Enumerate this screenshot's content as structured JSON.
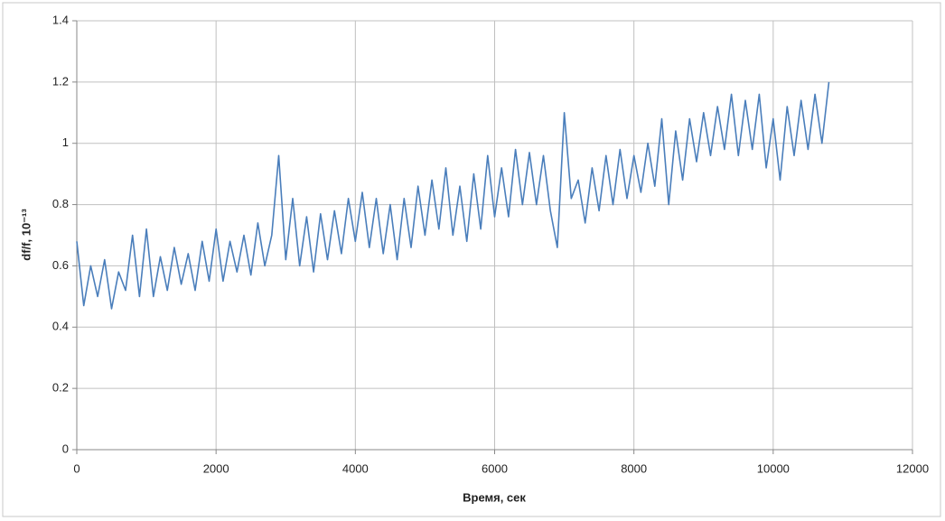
{
  "chart_data": {
    "type": "line",
    "x_label": "Время, сек",
    "y_label": "df/f, 10⁻¹³",
    "x": [
      0,
      100,
      200,
      300,
      400,
      500,
      600,
      700,
      800,
      900,
      1000,
      1100,
      1200,
      1300,
      1400,
      1500,
      1600,
      1700,
      1800,
      1900,
      2000,
      2100,
      2200,
      2300,
      2400,
      2500,
      2600,
      2700,
      2800,
      2900,
      3000,
      3100,
      3200,
      3300,
      3400,
      3500,
      3600,
      3700,
      3800,
      3900,
      4000,
      4100,
      4200,
      4300,
      4400,
      4500,
      4600,
      4700,
      4800,
      4900,
      5000,
      5100,
      5200,
      5300,
      5400,
      5500,
      5600,
      5700,
      5800,
      5900,
      6000,
      6100,
      6200,
      6300,
      6400,
      6500,
      6600,
      6700,
      6800,
      6900,
      7000,
      7100,
      7200,
      7300,
      7400,
      7500,
      7600,
      7700,
      7800,
      7900,
      8000,
      8100,
      8200,
      8300,
      8400,
      8500,
      8600,
      8700,
      8800,
      8900,
      9000,
      9100,
      9200,
      9300,
      9400,
      9500,
      9600,
      9700,
      9800,
      9900,
      10000,
      10100,
      10200,
      10300,
      10400,
      10500,
      10600,
      10700,
      10800
    ],
    "values": [
      0.68,
      0.47,
      0.6,
      0.5,
      0.62,
      0.46,
      0.58,
      0.52,
      0.7,
      0.5,
      0.72,
      0.5,
      0.63,
      0.52,
      0.66,
      0.54,
      0.64,
      0.52,
      0.68,
      0.55,
      0.72,
      0.55,
      0.68,
      0.58,
      0.7,
      0.57,
      0.74,
      0.6,
      0.7,
      0.96,
      0.62,
      0.82,
      0.6,
      0.76,
      0.58,
      0.77,
      0.62,
      0.78,
      0.64,
      0.82,
      0.68,
      0.84,
      0.66,
      0.82,
      0.64,
      0.8,
      0.62,
      0.82,
      0.66,
      0.86,
      0.7,
      0.88,
      0.72,
      0.92,
      0.7,
      0.86,
      0.68,
      0.9,
      0.72,
      0.96,
      0.76,
      0.92,
      0.76,
      0.98,
      0.8,
      0.97,
      0.8,
      0.96,
      0.78,
      0.66,
      1.1,
      0.82,
      0.88,
      0.74,
      0.92,
      0.78,
      0.96,
      0.8,
      0.98,
      0.82,
      0.96,
      0.84,
      1.0,
      0.86,
      1.08,
      0.8,
      1.04,
      0.88,
      1.08,
      0.94,
      1.1,
      0.96,
      1.12,
      0.98,
      1.16,
      0.96,
      1.14,
      0.98,
      1.16,
      0.92,
      1.08,
      0.88,
      1.12,
      0.96,
      1.14,
      0.98,
      1.16,
      1.0,
      1.2
    ],
    "color": "#4a7ebb",
    "xlim": [
      0,
      12000
    ],
    "xticks": [
      0,
      2000,
      4000,
      6000,
      8000,
      10000,
      12000
    ],
    "ylim": [
      0,
      1.4
    ],
    "yticks": [
      0,
      0.2,
      0.4,
      0.6,
      0.8,
      1,
      1.2,
      1.4
    ],
    "grid": true
  }
}
